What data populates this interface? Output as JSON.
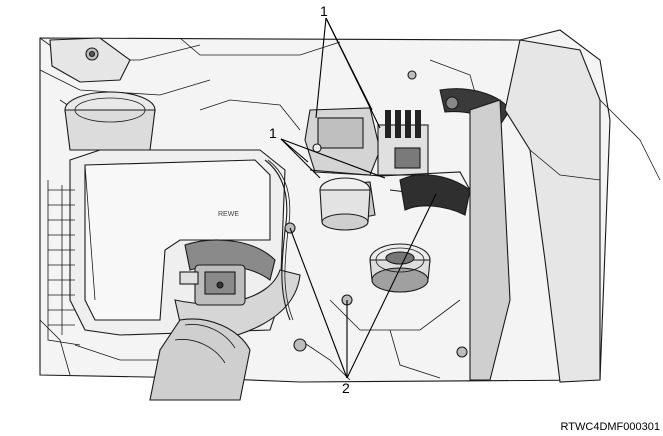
{
  "callouts": {
    "top": "1",
    "middle": "1",
    "bottom": "2"
  },
  "figure_code": "RTWC4DMF000301",
  "embossed_text": "REWE",
  "colors": {
    "line": "#000000",
    "light_fill": "#f2f2f2",
    "mid_fill": "#d9d9d9",
    "dark_fill": "#8a8a8a",
    "shadow_fill": "#555555"
  }
}
